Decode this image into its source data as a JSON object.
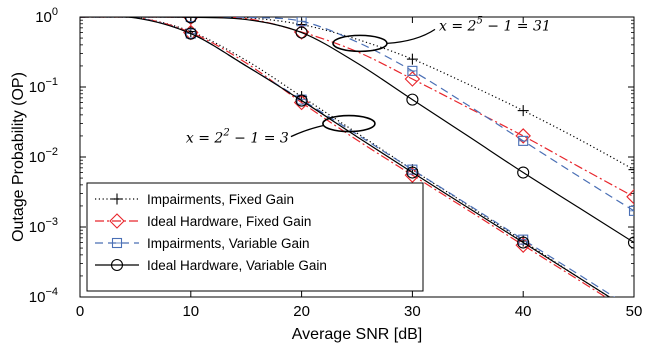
{
  "chart_data": {
    "type": "line",
    "xlabel": "Average SNR [dB]",
    "ylabel": "Outage Probability (OP)",
    "xlim": [
      0,
      50
    ],
    "ylim": [
      0.0001,
      1
    ],
    "yscale": "log",
    "grid": false,
    "legend_position": "bottom-left",
    "x_ticks": [
      "0",
      "10",
      "20",
      "30",
      "40",
      "50"
    ],
    "y_ticks": [
      {
        "base": "10",
        "exp": "0"
      },
      {
        "base": "10",
        "exp": "−1"
      },
      {
        "base": "10",
        "exp": "−2"
      },
      {
        "base": "10",
        "exp": "−3"
      },
      {
        "base": "10",
        "exp": "−4"
      }
    ],
    "annotations": [
      {
        "label": "x = 2^5 − 1 = 31",
        "group": "x=31",
        "text_x": 30,
        "text_y": 0.85,
        "ellipse_x": 25,
        "ellipse_y": 0.42
      },
      {
        "label": "x = 2^2 − 1 = 3",
        "group": "x=3",
        "text_x": 15,
        "text_y": 0.01,
        "ellipse_x": 24,
        "ellipse_y": 0.03
      }
    ],
    "series": [
      {
        "name": "Impairments, Fixed Gain",
        "style": "dotted",
        "color": "#000000",
        "marker": "plus",
        "groups": [
          {
            "x": [
              0,
              5,
              10,
              15,
              20,
              25,
              30,
              35,
              40,
              45,
              50
            ],
            "y": [
              1,
              1,
              0.998,
              0.975,
              0.78,
              0.48,
              0.25,
              0.11,
              0.046,
              0.018,
              0.0066
            ]
          },
          {
            "x": [
              0,
              5,
              10,
              15,
              20,
              25,
              30,
              35,
              40,
              45,
              50
            ],
            "y": [
              1,
              0.985,
              0.62,
              0.24,
              0.073,
              0.022,
              0.0066,
              0.00205,
              0.00063,
              0.00019,
              6e-05
            ]
          }
        ]
      },
      {
        "name": "Ideal Hardware, Fixed Gain",
        "style": "dashdot",
        "color": "#e8262c",
        "marker": "diamond",
        "groups": [
          {
            "x": [
              0,
              5,
              10,
              15,
              20,
              25,
              30,
              35,
              40,
              45,
              50
            ],
            "y": [
              1,
              1,
              0.99,
              0.95,
              0.61,
              0.32,
              0.13,
              0.051,
              0.02,
              0.0073,
              0.0027
            ]
          },
          {
            "x": [
              0,
              5,
              10,
              15,
              20,
              25,
              30,
              35,
              40,
              45,
              50
            ],
            "y": [
              1,
              0.99,
              0.6,
              0.22,
              0.06,
              0.0175,
              0.0055,
              0.00175,
              0.00055,
              0.000175,
              5.5e-05
            ]
          }
        ]
      },
      {
        "name": "Impairments, Variable Gain",
        "style": "dashed",
        "color": "#4a6fb5",
        "marker": "square",
        "groups": [
          {
            "x": [
              0,
              5,
              10,
              15,
              20,
              25,
              30,
              35,
              40,
              45,
              50
            ],
            "y": [
              1,
              1,
              0.999,
              0.985,
              0.87,
              0.44,
              0.17,
              0.055,
              0.017,
              0.0053,
              0.0017
            ]
          },
          {
            "x": [
              0,
              5,
              10,
              15,
              20,
              25,
              30,
              35,
              40,
              45,
              50
            ],
            "y": [
              1,
              0.98,
              0.58,
              0.2,
              0.066,
              0.021,
              0.0066,
              0.0021,
              0.00066,
              0.00021,
              6.6e-05
            ]
          }
        ]
      },
      {
        "name": "Ideal Hardware, Variable Gain",
        "style": "solid",
        "color": "#000000",
        "marker": "circle",
        "groups": [
          {
            "x": [
              0,
              5,
              10,
              15,
              20,
              25,
              30,
              35,
              40,
              45,
              50
            ],
            "y": [
              1,
              1,
              0.99,
              0.92,
              0.6,
              0.22,
              0.066,
              0.02,
              0.006,
              0.0019,
              0.0006
            ]
          },
          {
            "x": [
              0,
              5,
              10,
              15,
              20,
              25,
              30,
              35,
              40,
              45,
              50
            ],
            "y": [
              1,
              0.97,
              0.58,
              0.2,
              0.064,
              0.0195,
              0.006,
              0.0019,
              0.0006,
              0.00019,
              6e-05
            ]
          }
        ]
      }
    ],
    "markers_at_x": [
      10,
      20,
      30,
      40,
      50
    ]
  }
}
